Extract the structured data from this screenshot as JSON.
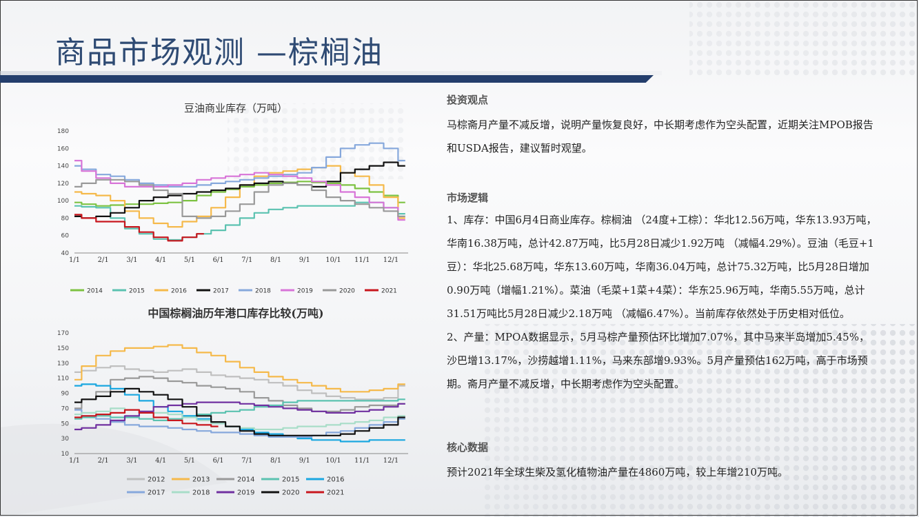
{
  "slide": {
    "title": "商品市场观测 —棕榈油"
  },
  "right": {
    "sections": [
      {
        "heading": "投资观点",
        "text": "马棕斋月产量不减反增，说明产量恢复良好，中长期考虑作为空头配置，近期关注MPOB报告和USDA报告，建议暂时观望。"
      },
      {
        "heading": "市场逻辑",
        "text": "1、库存：中国6月4日商业库存。棕榈油 （24度+工棕）：华北12.56万吨，华东13.93万吨，华南16.38万吨，总计42.87万吨，比5月28日减少1.92万吨 （减幅4.29%）。豆油（毛豆+1豆）：华北25.68万吨，华东13.60万吨，华南36.04万吨，总计75.32万吨，比5月28日增加0.90万吨（增幅1.21%）。菜油（毛菜+1菜+4菜）：华东25.96万吨，华南5.55万吨，总计31.51万吨比5月28日减少2.18万吨 （减幅6.47%）。当前库存依然处于历史相对低位。\n2、产量：MPOA数据显示，5月马棕产量预估环比增加7.07%，其中马来半岛增加5.45%，沙巴增13.17%，沙捞越增1.11%，马来东部增9.93%。5月产量预估162万吨，高于市场预期。斋月产量不减反增，中长期考虑作为空头配置。"
      },
      {
        "heading": "核心数据",
        "text": "预计2021年全球生柴及氢化植物油产量在4860万吨，较上年增210万吨。"
      }
    ]
  },
  "chart_data": [
    {
      "type": "line",
      "title": "豆油商业库存（万吨）",
      "xlabel": "",
      "ylabel": "",
      "ylim": [
        40,
        180
      ],
      "yticks": [
        40,
        60,
        80,
        100,
        120,
        140,
        160,
        180
      ],
      "xticks": [
        "1/1",
        "2/1",
        "3/1",
        "4/1",
        "5/1",
        "6/1",
        "7/1",
        "8/1",
        "9/1",
        "10/1",
        "11/1",
        "12/1"
      ],
      "legend_position": "bottom",
      "grid": false,
      "x_months": [
        1,
        1.5,
        2,
        2.5,
        3,
        3.5,
        4,
        4.5,
        5,
        5.5,
        6,
        6.5,
        7,
        7.5,
        8,
        8.5,
        9,
        9.5,
        10,
        10.5,
        11,
        11.5,
        12,
        12.5
      ],
      "series": [
        {
          "name": "2014",
          "color": "#7dc242",
          "values": [
            98,
            96,
            94,
            95,
            96,
            96,
            97,
            98,
            100,
            106,
            110,
            113,
            116,
            118,
            120,
            121,
            122,
            121,
            120,
            118,
            114,
            110,
            106,
            98
          ]
        },
        {
          "name": "2015",
          "color": "#5bc2b0",
          "values": [
            94,
            93,
            92,
            80,
            68,
            62,
            56,
            55,
            58,
            62,
            66,
            72,
            80,
            86,
            90,
            92,
            94,
            94,
            94,
            94,
            98,
            98,
            92,
            85
          ]
        },
        {
          "name": "2016",
          "color": "#f5b94a",
          "values": [
            110,
            108,
            106,
            100,
            88,
            80,
            74,
            70,
            76,
            82,
            92,
            104,
            118,
            128,
            132,
            134,
            136,
            138,
            140,
            132,
            128,
            118,
            104,
            80
          ]
        },
        {
          "name": "2017",
          "color": "#111111",
          "values": [
            82,
            80,
            82,
            86,
            92,
            100,
            104,
            106,
            108,
            110,
            112,
            114,
            118,
            120,
            122,
            120,
            118,
            116,
            122,
            132,
            136,
            140,
            144,
            140
          ]
        },
        {
          "name": "2018",
          "color": "#86a8dc",
          "values": [
            140,
            136,
            130,
            128,
            124,
            120,
            118,
            116,
            116,
            118,
            120,
            122,
            124,
            126,
            128,
            130,
            132,
            138,
            150,
            160,
            164,
            166,
            160,
            146
          ]
        },
        {
          "name": "2019",
          "color": "#d874d8",
          "values": [
            146,
            134,
            126,
            120,
            116,
            116,
            116,
            118,
            120,
            124,
            126,
            128,
            130,
            132,
            130,
            128,
            126,
            122,
            118,
            110,
            104,
            98,
            92,
            78
          ]
        },
        {
          "name": "2020",
          "color": "#999999",
          "values": [
            116,
            120,
            124,
            124,
            122,
            118,
            112,
            108,
            82,
            80,
            82,
            88,
            96,
            110,
            118,
            120,
            118,
            112,
            104,
            100,
            96,
            92,
            88,
            82
          ]
        },
        {
          "name": "2021",
          "color": "#c8161d",
          "values": [
            84,
            80,
            76,
            76,
            70,
            64,
            58,
            54,
            58,
            62,
            null,
            null,
            null,
            null,
            null,
            null,
            null,
            null,
            null,
            null,
            null,
            null,
            null,
            null
          ]
        }
      ]
    },
    {
      "type": "line",
      "title": "中国棕榈油历年港口库存比较(万吨)",
      "xlabel": "",
      "ylabel": "",
      "ylim": [
        10,
        170
      ],
      "yticks": [
        10,
        30,
        50,
        70,
        90,
        110,
        130,
        150,
        170
      ],
      "xticks": [
        "1/1",
        "2/1",
        "3/1",
        "4/1",
        "5/1",
        "6/1",
        "7/1",
        "8/1",
        "9/1",
        "10/1",
        "11/1",
        "12/1"
      ],
      "legend_position": "bottom",
      "grid": false,
      "x_months": [
        1,
        1.5,
        2,
        2.5,
        3,
        3.5,
        4,
        4.5,
        5,
        5.5,
        6,
        6.5,
        7,
        7.5,
        8,
        8.5,
        9,
        9.5,
        10,
        10.5,
        11,
        11.5,
        12,
        12.5
      ],
      "series": [
        {
          "name": "2012",
          "color": "#bfbfbf",
          "values": [
            118,
            120,
            124,
            126,
            122,
            120,
            118,
            120,
            122,
            118,
            114,
            112,
            110,
            108,
            104,
            100,
            94,
            90,
            86,
            84,
            82,
            82,
            84,
            100
          ]
        },
        {
          "name": "2013",
          "color": "#f5b94a",
          "values": [
            108,
            126,
            140,
            146,
            150,
            150,
            152,
            154,
            150,
            144,
            140,
            132,
            124,
            118,
            112,
            108,
            104,
            100,
            96,
            92,
            92,
            94,
            96,
            102
          ]
        },
        {
          "name": "2014",
          "color": "#999999",
          "values": [
            70,
            82,
            92,
            108,
            110,
            112,
            110,
            106,
            104,
            100,
            98,
            96,
            92,
            84,
            80,
            74,
            70,
            66,
            66,
            68,
            72,
            74,
            74,
            76
          ]
        },
        {
          "name": "2015",
          "color": "#5bc2b0",
          "values": [
            56,
            58,
            60,
            58,
            58,
            56,
            54,
            56,
            60,
            62,
            64,
            66,
            68,
            72,
            74,
            78,
            80,
            80,
            80,
            80,
            80,
            80,
            80,
            82
          ]
        },
        {
          "name": "2016",
          "color": "#1aa7e0",
          "values": [
            100,
            102,
            100,
            96,
            88,
            80,
            72,
            66,
            60,
            56,
            50,
            46,
            42,
            38,
            36,
            32,
            30,
            28,
            28,
            26,
            26,
            28,
            28,
            28
          ]
        },
        {
          "name": "2017",
          "color": "#86a8dc",
          "values": [
            68,
            60,
            56,
            52,
            48,
            46,
            46,
            44,
            42,
            40,
            38,
            38,
            36,
            34,
            32,
            32,
            32,
            34,
            38,
            40,
            44,
            48,
            52,
            56
          ]
        },
        {
          "name": "2018",
          "color": "#a8ddc8",
          "values": [
            62,
            64,
            66,
            70,
            68,
            66,
            64,
            62,
            58,
            54,
            50,
            46,
            44,
            42,
            42,
            44,
            46,
            46,
            48,
            50,
            52,
            54,
            58,
            60
          ]
        },
        {
          "name": "2019",
          "color": "#7030a0",
          "values": [
            42,
            44,
            48,
            54,
            60,
            66,
            72,
            74,
            76,
            78,
            78,
            78,
            76,
            74,
            72,
            70,
            68,
            66,
            64,
            64,
            66,
            68,
            72,
            76
          ]
        },
        {
          "name": "2020",
          "color": "#111111",
          "values": [
            78,
            82,
            86,
            92,
            96,
            92,
            88,
            82,
            72,
            60,
            52,
            46,
            40,
            36,
            34,
            34,
            34,
            34,
            34,
            36,
            40,
            44,
            48,
            58
          ]
        },
        {
          "name": "2021",
          "color": "#c8161d",
          "values": [
            58,
            60,
            62,
            64,
            68,
            64,
            58,
            54,
            50,
            48,
            46,
            null,
            null,
            null,
            null,
            null,
            null,
            null,
            null,
            null,
            null,
            null,
            null,
            null
          ]
        }
      ]
    }
  ]
}
